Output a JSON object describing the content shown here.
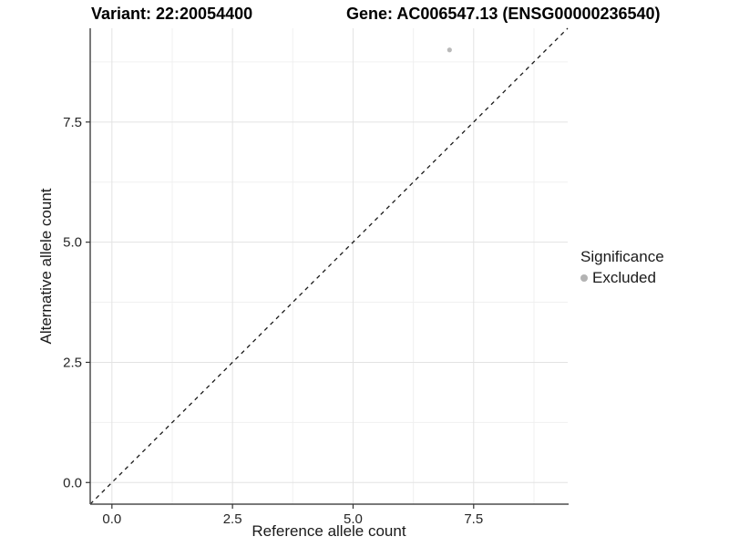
{
  "titles": {
    "variant": "Variant: 22:20054400",
    "gene": "Gene: AC006547.13 (ENSG00000236540)"
  },
  "legend": {
    "title": "Significance",
    "items": [
      {
        "label": "Excluded",
        "color": "#b3b3b3"
      }
    ]
  },
  "chart_data": {
    "type": "scatter",
    "title": "Variant: 22:20054400    Gene: AC006547.13 (ENSG00000236540)",
    "xlabel": "Reference allele count",
    "ylabel": "Alternative allele count",
    "xlim": [
      -0.45,
      9.45
    ],
    "ylim": [
      -0.45,
      9.45
    ],
    "xticks": [
      0.0,
      2.5,
      5.0,
      7.5
    ],
    "yticks": [
      0.0,
      2.5,
      5.0,
      7.5
    ],
    "xtick_labels": [
      "0.0",
      "2.5",
      "5.0",
      "7.5"
    ],
    "ytick_labels": [
      "0.0",
      "2.5",
      "5.0",
      "7.5"
    ],
    "xminor": [
      1.25,
      3.75,
      6.25,
      8.75
    ],
    "yminor": [
      1.25,
      3.75,
      6.25,
      8.75
    ],
    "grid": "major+minor",
    "legend_position": "right",
    "series": [
      {
        "name": "Excluded",
        "color": "#b9b9b9",
        "points": [
          {
            "x": 7,
            "y": 9
          }
        ]
      }
    ],
    "reference_line": {
      "type": "identity",
      "slope": 1,
      "intercept": 0,
      "style": "dashed",
      "color": "#1a1a1a"
    }
  },
  "style_colors": {
    "grid_major": "#e3e3e3",
    "grid_minor": "#f0f0f0",
    "axis_line": "#4d4d4d",
    "tick_mark": "#333333",
    "tick_label": "#262626"
  }
}
